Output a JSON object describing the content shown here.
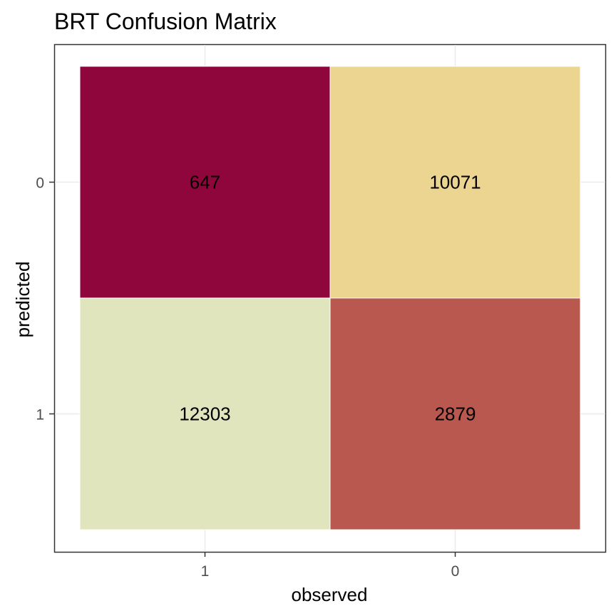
{
  "chart_data": {
    "type": "heatmap",
    "title": "BRT Confusion Matrix",
    "xlabel": "observed",
    "ylabel": "predicted",
    "x_categories": [
      "1",
      "0"
    ],
    "y_categories": [
      "0",
      "1"
    ],
    "cells": [
      {
        "observed": "1",
        "predicted": "0",
        "value": 647,
        "color": "#8e063b"
      },
      {
        "observed": "0",
        "predicted": "0",
        "value": 10071,
        "color": "#ecd491"
      },
      {
        "observed": "1",
        "predicted": "1",
        "value": 12303,
        "color": "#e1e5bd"
      },
      {
        "observed": "0",
        "predicted": "1",
        "value": 2879,
        "color": "#b8584e"
      }
    ],
    "grid": true,
    "legend": "none"
  }
}
